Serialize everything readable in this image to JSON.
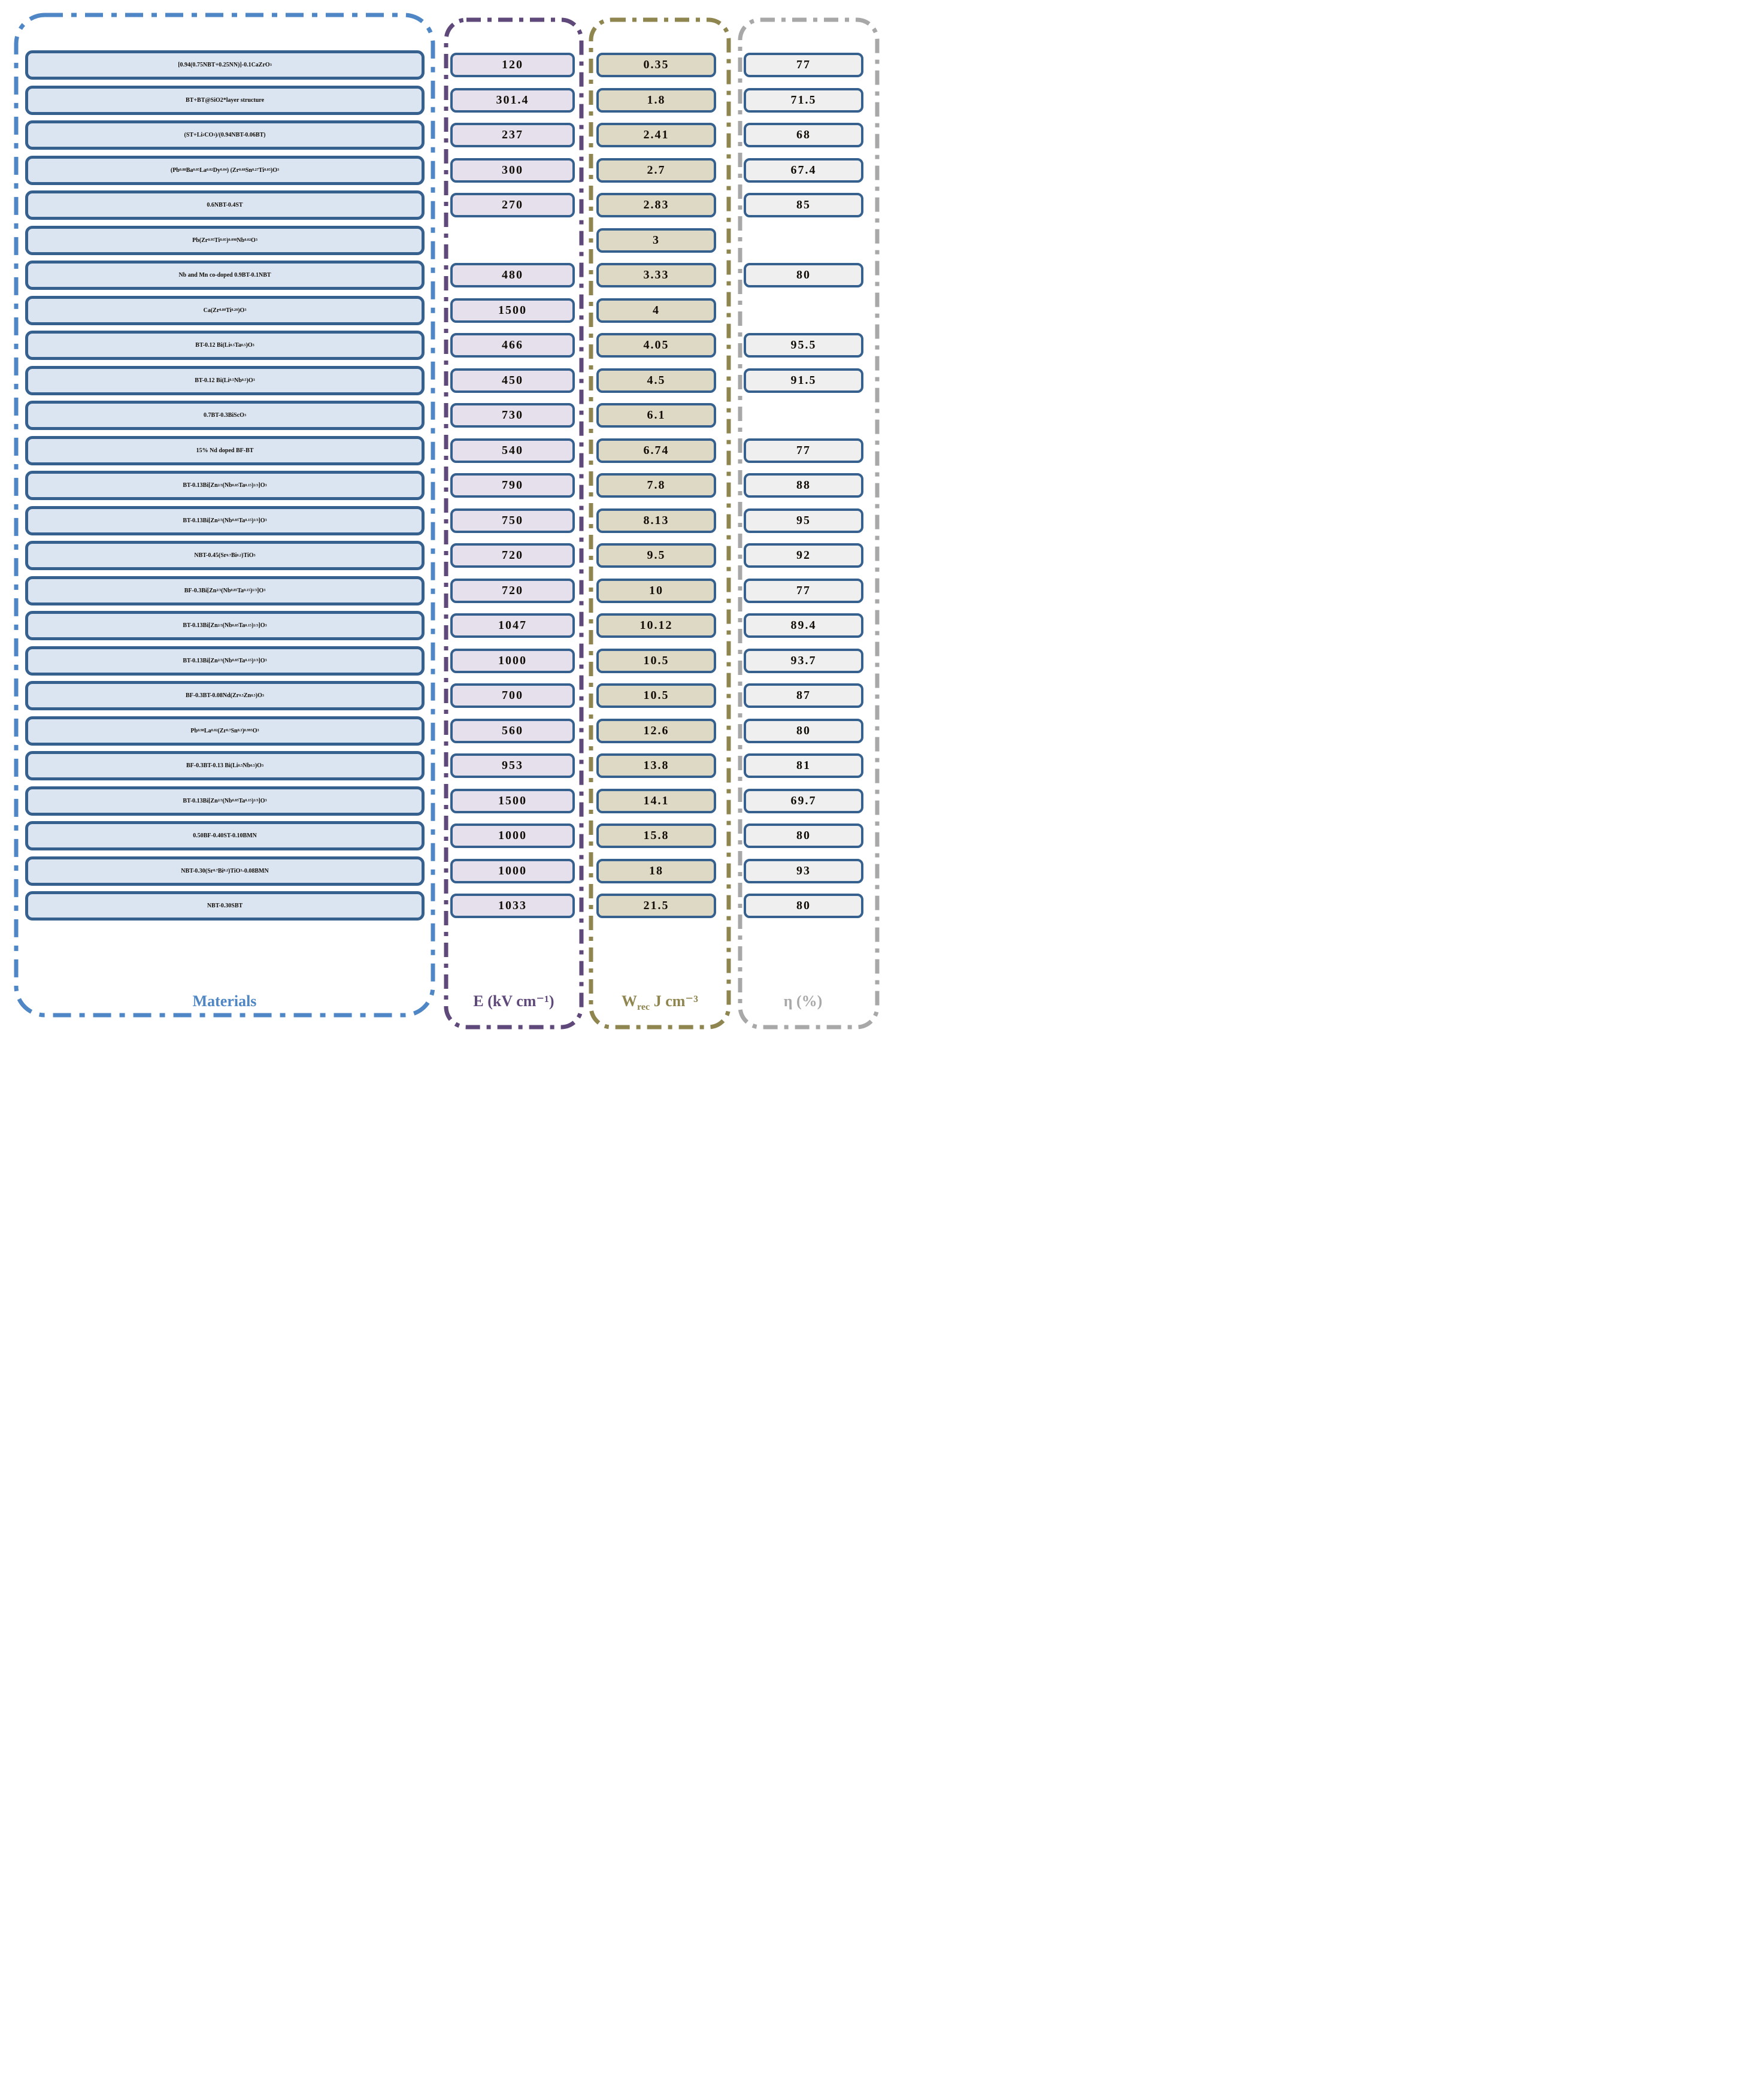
{
  "colors": {
    "materials_box_fill": "#dbe5f1",
    "e_box_fill": "#e5e0ec",
    "wrec_box_fill": "#ded9c4",
    "eta_box_fill": "#efefef",
    "box_border": "#36608e",
    "materials_accent": "#4f86c6",
    "e_accent": "#5f497a",
    "wrec_accent": "#8f854f",
    "eta_accent": "#a8a8a8",
    "text": "#120d07"
  },
  "columns": {
    "materials": {
      "label": "Materials"
    },
    "e": {
      "label": "E (kV cm⁻¹)"
    },
    "wrec": {
      "label": "W~rec~ J cm⁻³"
    },
    "eta": {
      "label": "η (%)"
    }
  },
  "rows": [
    {
      "material": "[0.94(0.75NBT+0.25NN)]-0.1CaZrO~3~",
      "e": "120",
      "wrec": "0.35",
      "eta": "77"
    },
    {
      "material": "BT+BT@SiO2*layer structure",
      "e": "301.4",
      "wrec": "1.8",
      "eta": "71.5"
    },
    {
      "material": "(ST+Li~2~CO~3~)/(0.94NBT-0.06BT)",
      "e": "237",
      "wrec": "2.41",
      "eta": "68"
    },
    {
      "material": "(Pb~0.88~Ba~0.05~La~0.02~Dy~0.04~) (Zr~0.68~Sn~0.27~Ti~0.05~)O~3~",
      "e": "300",
      "wrec": "2.7",
      "eta": "67.4"
    },
    {
      "material": "0.6NBT-0.4ST",
      "e": "270",
      "wrec": "2.83",
      "eta": "85"
    },
    {
      "material": "Pb(Zr~0.95~Ti~0.05~)~0.098~Nb~0.02~ O~3~",
      "e": "",
      "wrec": "3",
      "eta": ""
    },
    {
      "material": "Nb and Mn co-doped 0.9BT-0.1NBT",
      "e": "480",
      "wrec": "3.33",
      "eta": "80"
    },
    {
      "material": "Ca(Zr~0.80~Ti~0.20~)O~3~",
      "e": "1500",
      "wrec": "4",
      "eta": ""
    },
    {
      "material": "BT-0.12 Bi(Li~0.5~Ta~0.5~)O~3~",
      "e": "466",
      "wrec": "4.05",
      "eta": "95.5"
    },
    {
      "material": "BT-0.12 Bi(Li~0.5~Nb~0.5~)O~3~",
      "e": "450",
      "wrec": "4.5",
      "eta": "91.5"
    },
    {
      "material": "0.7BT-0.3BiScO~3~",
      "e": "730",
      "wrec": "6.1",
      "eta": ""
    },
    {
      "material": "15% Nd doped BF-BT",
      "e": "540",
      "wrec": "6.74",
      "eta": "77"
    },
    {
      "material": "BT-0.13Bi[Zn~2/3~(Nb~0.85~Ta~0.15~)~1/3~]O~3~",
      "e": "790",
      "wrec": "7.8",
      "eta": "88"
    },
    {
      "material": "BT-0.13Bi[Zn~2/3~(Nb~0.85~Ta~0.15~)~1/3~]O~3~",
      "e": "750",
      "wrec": "8.13",
      "eta": "95"
    },
    {
      "material": "NBT-0.45(Sr~0.7~Bi~0.2~)TiO~3~",
      "e": "720",
      "wrec": "9.5",
      "eta": "92"
    },
    {
      "material": "BF-0.3Bi[Zn~2/3~(Nb~0.85~Ta~0.15~)~1/3~]O~3~",
      "e": "720",
      "wrec": "10",
      "eta": "77"
    },
    {
      "material": "BT-0.13Bi[Zn~2/3~(Nb~0.85~Ta~0.15~)~1/3~]O~3~",
      "e": "1047",
      "wrec": "10.12",
      "eta": "89.4"
    },
    {
      "material": "BT-0.13Bi[Zn~2/3~(Nb~0.85~Ta~0.15~)~1/3~]O~3~",
      "e": "1000",
      "wrec": "10.5",
      "eta": "93.7"
    },
    {
      "material": "BF-0.3BT-0.08Nd(Zr~0.5~Zn~0.5~)O~3~",
      "e": "700",
      "wrec": "10.5",
      "eta": "87"
    },
    {
      "material": "Pb~0.98~La~0.02~(Zr~0.7~Sn~0.3~)~0.995~O~3~",
      "e": "560",
      "wrec": "12.6",
      "eta": "80"
    },
    {
      "material": "BF-0.3BT-0.13 Bi(Li~0.5~Nb~0.5~)O~3~",
      "e": "953",
      "wrec": "13.8",
      "eta": "81"
    },
    {
      "material": "BT-0.13Bi[Zn~2/3~(Nb~0.85~Ta~0.15~)~1/3~]O~3~",
      "e": "1500",
      "wrec": "14.1",
      "eta": "69.7"
    },
    {
      "material": "0.50BF-0.40ST-0.10BMN",
      "e": "1000",
      "wrec": "15.8",
      "eta": "80"
    },
    {
      "material": "NBT-0.30(Sr~0.7~Bi~0.2~)TiO~3~-0.08BMN",
      "e": "1000",
      "wrec": "18",
      "eta": "93"
    },
    {
      "material": "NBT-0.30SBT",
      "e": "1033",
      "wrec": "21.5",
      "eta": "80"
    }
  ],
  "chart_data": {
    "type": "table",
    "title": "Energy storage performance comparison of dielectric materials",
    "columns": [
      "Materials",
      "E (kV cm-1)",
      "Wrec (J cm-3)",
      "η (%)"
    ],
    "legend_position": "bottom",
    "rows": [
      [
        "[0.94(0.75NBT+0.25NN)]-0.1CaZrO3",
        120,
        0.35,
        77
      ],
      [
        "BT+BT@SiO2*layer structure",
        301.4,
        1.8,
        71.5
      ],
      [
        "(ST+Li2CO3)/(0.94NBT-0.06BT)",
        237,
        2.41,
        68
      ],
      [
        "(Pb0.88Ba0.05La0.02Dy0.04) (Zr0.68Sn0.27Ti0.05)O3",
        300,
        2.7,
        67.4
      ],
      [
        "0.6NBT-0.4ST",
        270,
        2.83,
        85
      ],
      [
        "Pb(Zr0.95Ti0.05)0.098Nb0.02 O3",
        null,
        3,
        null
      ],
      [
        "Nb and Mn co-doped 0.9BT-0.1NBT",
        480,
        3.33,
        80
      ],
      [
        "Ca(Zr0.80Ti0.20)O3",
        1500,
        4,
        null
      ],
      [
        "BT-0.12 Bi(Li0.5Ta0.5)O3",
        466,
        4.05,
        95.5
      ],
      [
        "BT-0.12 Bi(Li0.5Nb0.5)O3",
        450,
        4.5,
        91.5
      ],
      [
        "0.7BT-0.3BiScO3",
        730,
        6.1,
        null
      ],
      [
        "15% Nd doped BF-BT",
        540,
        6.74,
        77
      ],
      [
        "BT-0.13Bi[Zn2/3(Nb0.85Ta0.15)1/3]O3",
        790,
        7.8,
        88
      ],
      [
        "BT-0.13Bi[Zn2/3(Nb0.85Ta0.15)1/3]O3",
        750,
        8.13,
        95
      ],
      [
        "NBT-0.45(Sr0.7Bi0.2)TiO3",
        720,
        9.5,
        92
      ],
      [
        "BF-0.3Bi[Zn2/3(Nb0.85Ta0.15)1/3]O3",
        720,
        10,
        77
      ],
      [
        "BT-0.13Bi[Zn2/3(Nb0.85Ta0.15)1/3]O3",
        1047,
        10.12,
        89.4
      ],
      [
        "BT-0.13Bi[Zn2/3(Nb0.85Ta0.15)1/3]O3",
        1000,
        10.5,
        93.7
      ],
      [
        "BF-0.3BT-0.08Nd(Zr0.5Zn0.5)O3",
        700,
        10.5,
        87
      ],
      [
        "Pb0.98La0.02(Zr0.7Sn0.3)0.995O3",
        560,
        12.6,
        80
      ],
      [
        "BF-0.3BT-0.13 Bi(Li0.5Nb0.5)O3",
        953,
        13.8,
        81
      ],
      [
        "BT-0.13Bi[Zn2/3(Nb0.85Ta0.15)1/3]O3",
        1500,
        14.1,
        69.7
      ],
      [
        "0.50BF-0.40ST-0.10BMN",
        1000,
        15.8,
        80
      ],
      [
        "NBT-0.30(Sr0.7Bi0.2)TiO3-0.08BMN",
        1000,
        18,
        93
      ],
      [
        "NBT-0.30SBT",
        1033,
        21.5,
        80
      ]
    ]
  }
}
